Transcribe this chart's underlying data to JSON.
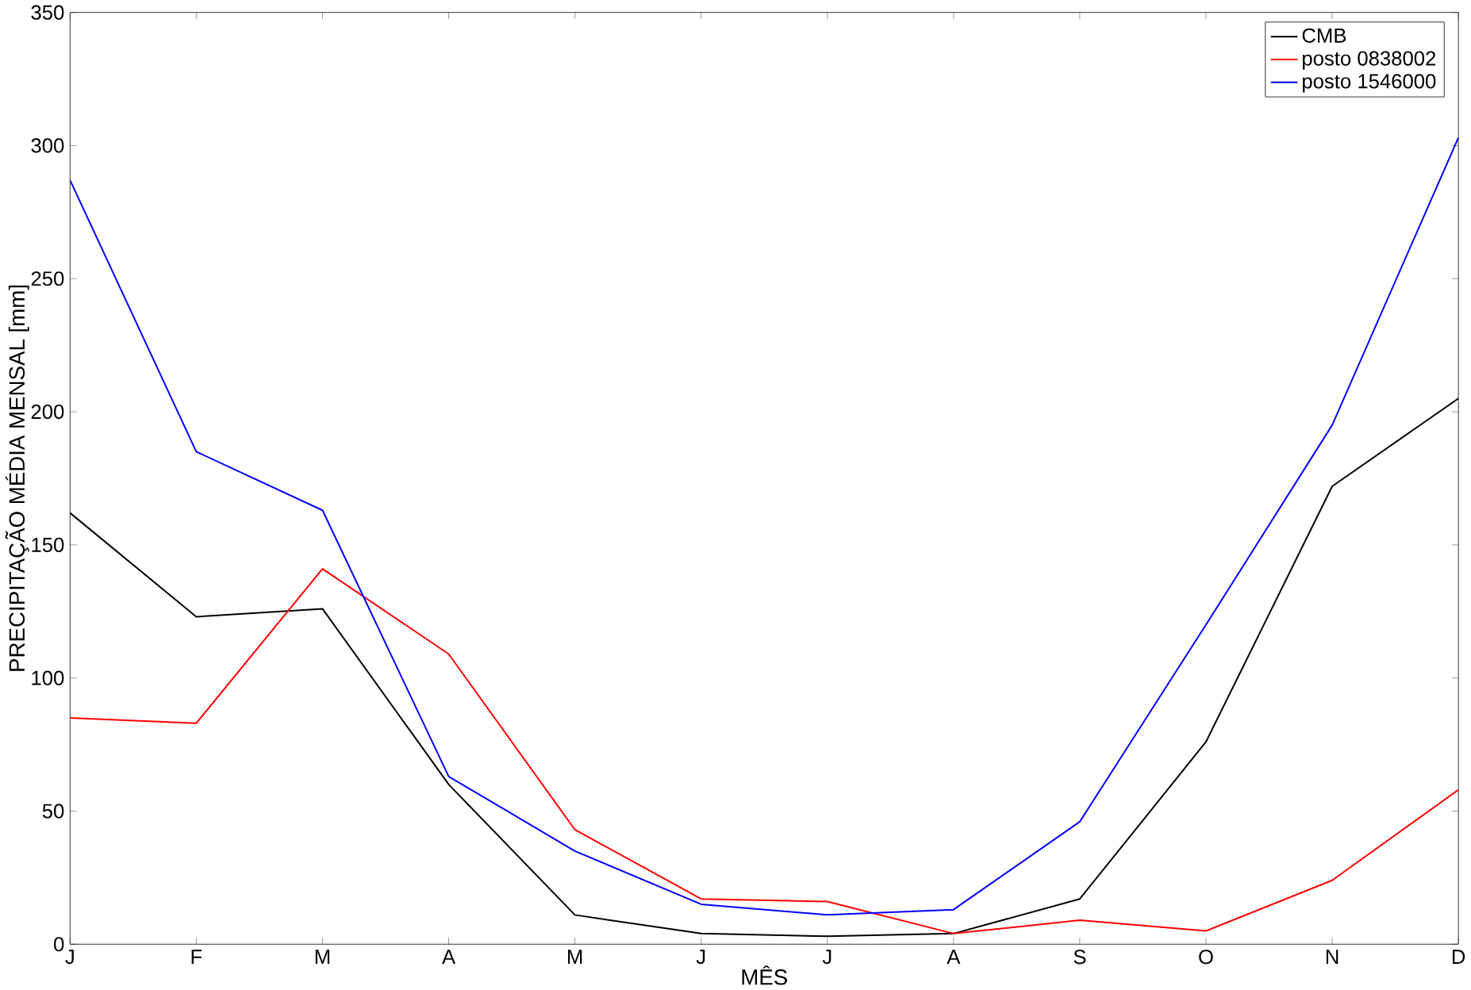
{
  "chart_data": {
    "type": "line",
    "xlabel": "MÊS",
    "ylabel": "PRECIPITAÇÃO MÉDIA MENSAL [mm]",
    "categories": [
      "J",
      "F",
      "M",
      "A",
      "M",
      "J",
      "J",
      "A",
      "S",
      "O",
      "N",
      "D"
    ],
    "ylim": [
      0,
      350
    ],
    "yticks": [
      0,
      50,
      100,
      150,
      200,
      250,
      300,
      350
    ],
    "legend": "top right",
    "grid": false,
    "marker": "none",
    "line_style": "solid",
    "series": [
      {
        "name": "CMB",
        "color": "#000000",
        "values": [
          162,
          123,
          126,
          60,
          11,
          4,
          3,
          4,
          17,
          76,
          172,
          205
        ]
      },
      {
        "name": "posto 0838002",
        "color": "#ff0000",
        "values": [
          85,
          83,
          141,
          109,
          43,
          17,
          16,
          4,
          9,
          5,
          24,
          58
        ]
      },
      {
        "name": "posto 1546000",
        "color": "#0000ff",
        "values": [
          287,
          185,
          163,
          63,
          35,
          15,
          11,
          13,
          46,
          120,
          195,
          303
        ]
      }
    ]
  }
}
